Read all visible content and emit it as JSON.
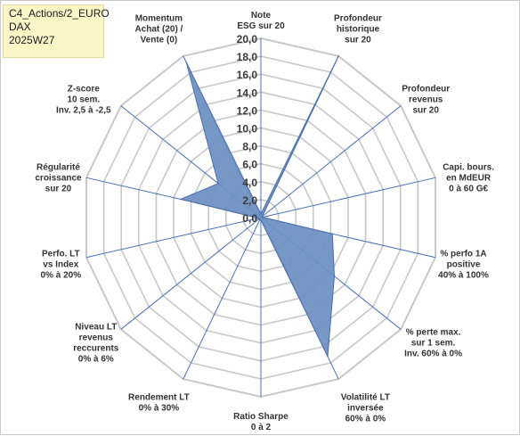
{
  "title_box": {
    "line1": "C4_Actions/2_EURO",
    "line2": "DAX",
    "line3": "2025W27"
  },
  "chart_data": {
    "type": "radar",
    "rmin": 0,
    "rmax": 20,
    "ticks": [
      "0,0",
      "2,0",
      "4,0",
      "6,0",
      "8,0",
      "10,0",
      "12,0",
      "14,0",
      "16,0",
      "18,0",
      "20,0"
    ],
    "grid": true,
    "colors": {
      "fill": "#6b8fc2",
      "stroke": "#4a6fa8",
      "spoke": "#4a72b8",
      "grid": "#c8c8c8"
    },
    "axes": [
      {
        "label": [
          "Note",
          "ESG sur 20"
        ],
        "value": 0.4
      },
      {
        "label": [
          "Profondeur",
          "historique",
          "sur 20"
        ],
        "value": 20
      },
      {
        "label": [
          "Profondeur",
          "revenus",
          "sur 20"
        ],
        "value": 0.2
      },
      {
        "label": [
          "Capi. bours.",
          "en MdEUR",
          "0 à 60 G€"
        ],
        "value": 0.2
      },
      {
        "label": [
          "% perfo 1A",
          "positive",
          "40% à 100%"
        ],
        "value": 8.2
      },
      {
        "label": [
          "% perte max.",
          "sur 1 sem.",
          "Inv. 60% à 0%"
        ],
        "value": 10.5
      },
      {
        "label": [
          "Volatilité LT",
          "inversée",
          "60% à 0%"
        ],
        "value": 17.2
      },
      {
        "label": [
          "Ratio Sharpe",
          "0 à 2"
        ],
        "value": 0.3
      },
      {
        "label": [
          "Rendement LT",
          "0% à 30%"
        ],
        "value": 0.3
      },
      {
        "label": [
          "Niveau LT",
          "revenus",
          "reccurents",
          "0% à 6%"
        ],
        "value": 0.3
      },
      {
        "label": [
          "Perfo. LT",
          "vs Index",
          "0% à 20%"
        ],
        "value": 0.3
      },
      {
        "label": [
          "Régularité",
          "croissance",
          "sur 20"
        ],
        "value": 9.2
      },
      {
        "label": [
          "Z-score",
          "10 sem.",
          "Inv. 2,5 à -2,5"
        ],
        "value": 6.1
      },
      {
        "label": [
          "Momentum",
          "Achat (20) /",
          "Vente (0)"
        ],
        "value": 19.2
      }
    ]
  }
}
